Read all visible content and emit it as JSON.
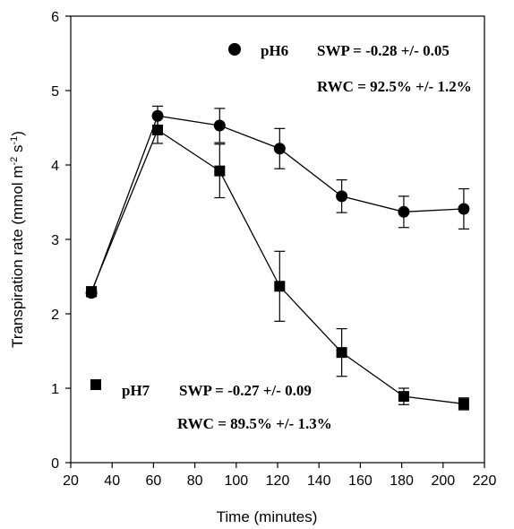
{
  "chart_data": {
    "type": "line",
    "title": "",
    "xlabel": "Time (minutes)",
    "ylabel": "Transpiration rate (mmol m",
    "ylabel_sup1": "-2",
    "ylabel_mid": " s",
    "ylabel_sup2": "-1",
    "ylabel_end": ")",
    "xlim": [
      20,
      220
    ],
    "ylim": [
      0,
      6
    ],
    "xticks": [
      20,
      40,
      60,
      80,
      100,
      120,
      140,
      160,
      180,
      200,
      220
    ],
    "yticks": [
      0,
      1,
      2,
      3,
      4,
      5,
      6
    ],
    "grid": false,
    "series": [
      {
        "name": "pH6",
        "marker": "circle",
        "x": [
          30,
          62,
          92,
          121,
          151,
          181,
          210
        ],
        "y": [
          2.28,
          4.66,
          4.53,
          4.22,
          3.58,
          3.37,
          3.41
        ],
        "err": [
          0.05,
          0.13,
          0.23,
          0.27,
          0.22,
          0.21,
          0.27
        ]
      },
      {
        "name": "pH7",
        "marker": "square",
        "x": [
          30,
          62,
          92,
          121,
          151,
          181,
          210
        ],
        "y": [
          2.3,
          4.47,
          3.92,
          2.37,
          1.48,
          0.89,
          0.79
        ],
        "err": [
          0.06,
          0.18,
          0.36,
          0.47,
          0.32,
          0.11,
          0.08
        ]
      }
    ],
    "annotations": {
      "ph6_name": "pH6",
      "ph6_swp": "SWP = -0.28 +/- 0.05",
      "ph6_rwc": "RWC = 92.5% +/- 1.2%",
      "ph7_name": "pH7",
      "ph7_swp": "SWP = -0.27 +/- 0.09",
      "ph7_rwc": "RWC = 89.5% +/- 1.3%"
    }
  }
}
